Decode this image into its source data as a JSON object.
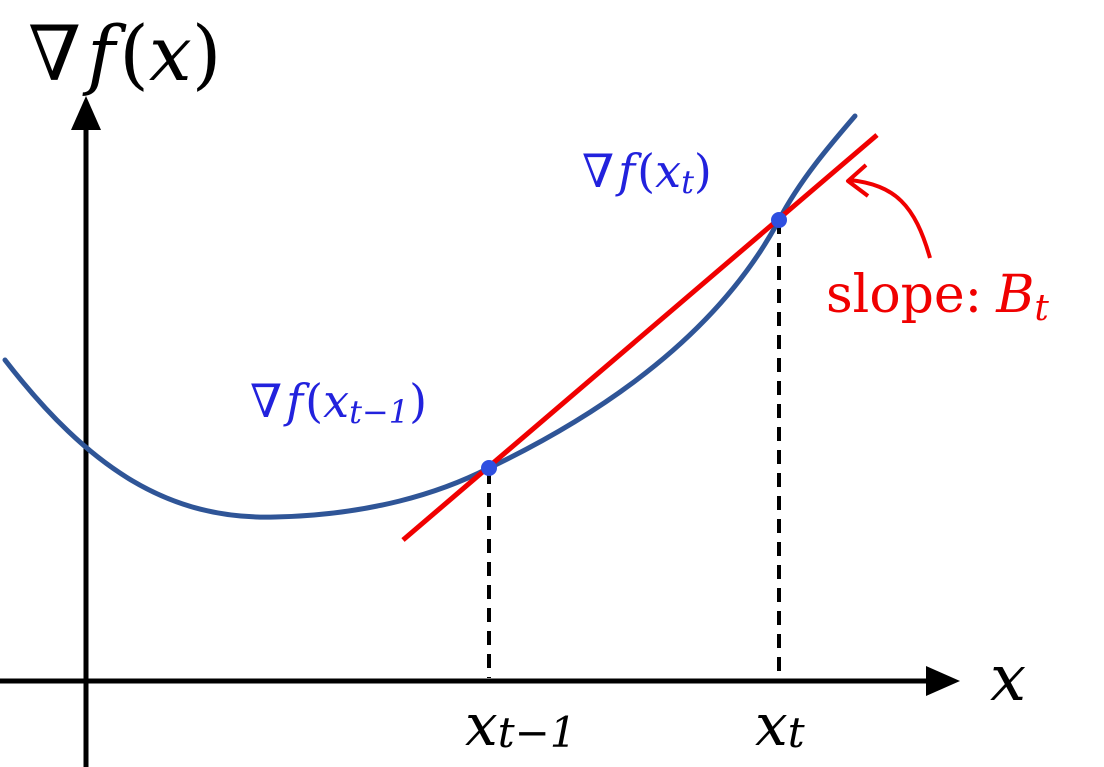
{
  "colors": {
    "axis": "#000000",
    "curve": "#2f5597",
    "secant": "#f00000",
    "point": "#2f4fe0",
    "point_label": "#2222dd",
    "annotation": "#f00000",
    "guide": "#000000"
  },
  "labels": {
    "y_axis": {
      "nabla": "∇",
      "f": "f",
      "open": "(",
      "x": "x",
      "close": ")"
    },
    "x_axis": "x",
    "tick_prev": {
      "base": "x",
      "sub": "t−1"
    },
    "tick_curr": {
      "base": "x",
      "sub": "t"
    },
    "point_prev": {
      "nabla": "∇",
      "f": "f",
      "open": "(",
      "x": "x",
      "sub": "t−1",
      "close": ")"
    },
    "point_curr": {
      "nabla": "∇",
      "f": "f",
      "open": "(",
      "x": "x",
      "sub": "t",
      "close": ")"
    },
    "slope": {
      "word": "slope:",
      "var": "B",
      "sub": "t"
    }
  },
  "icons": {
    "y_arrow": "arrow-up-icon",
    "x_arrow": "arrow-right-icon",
    "callout": "curved-arrow-icon"
  }
}
